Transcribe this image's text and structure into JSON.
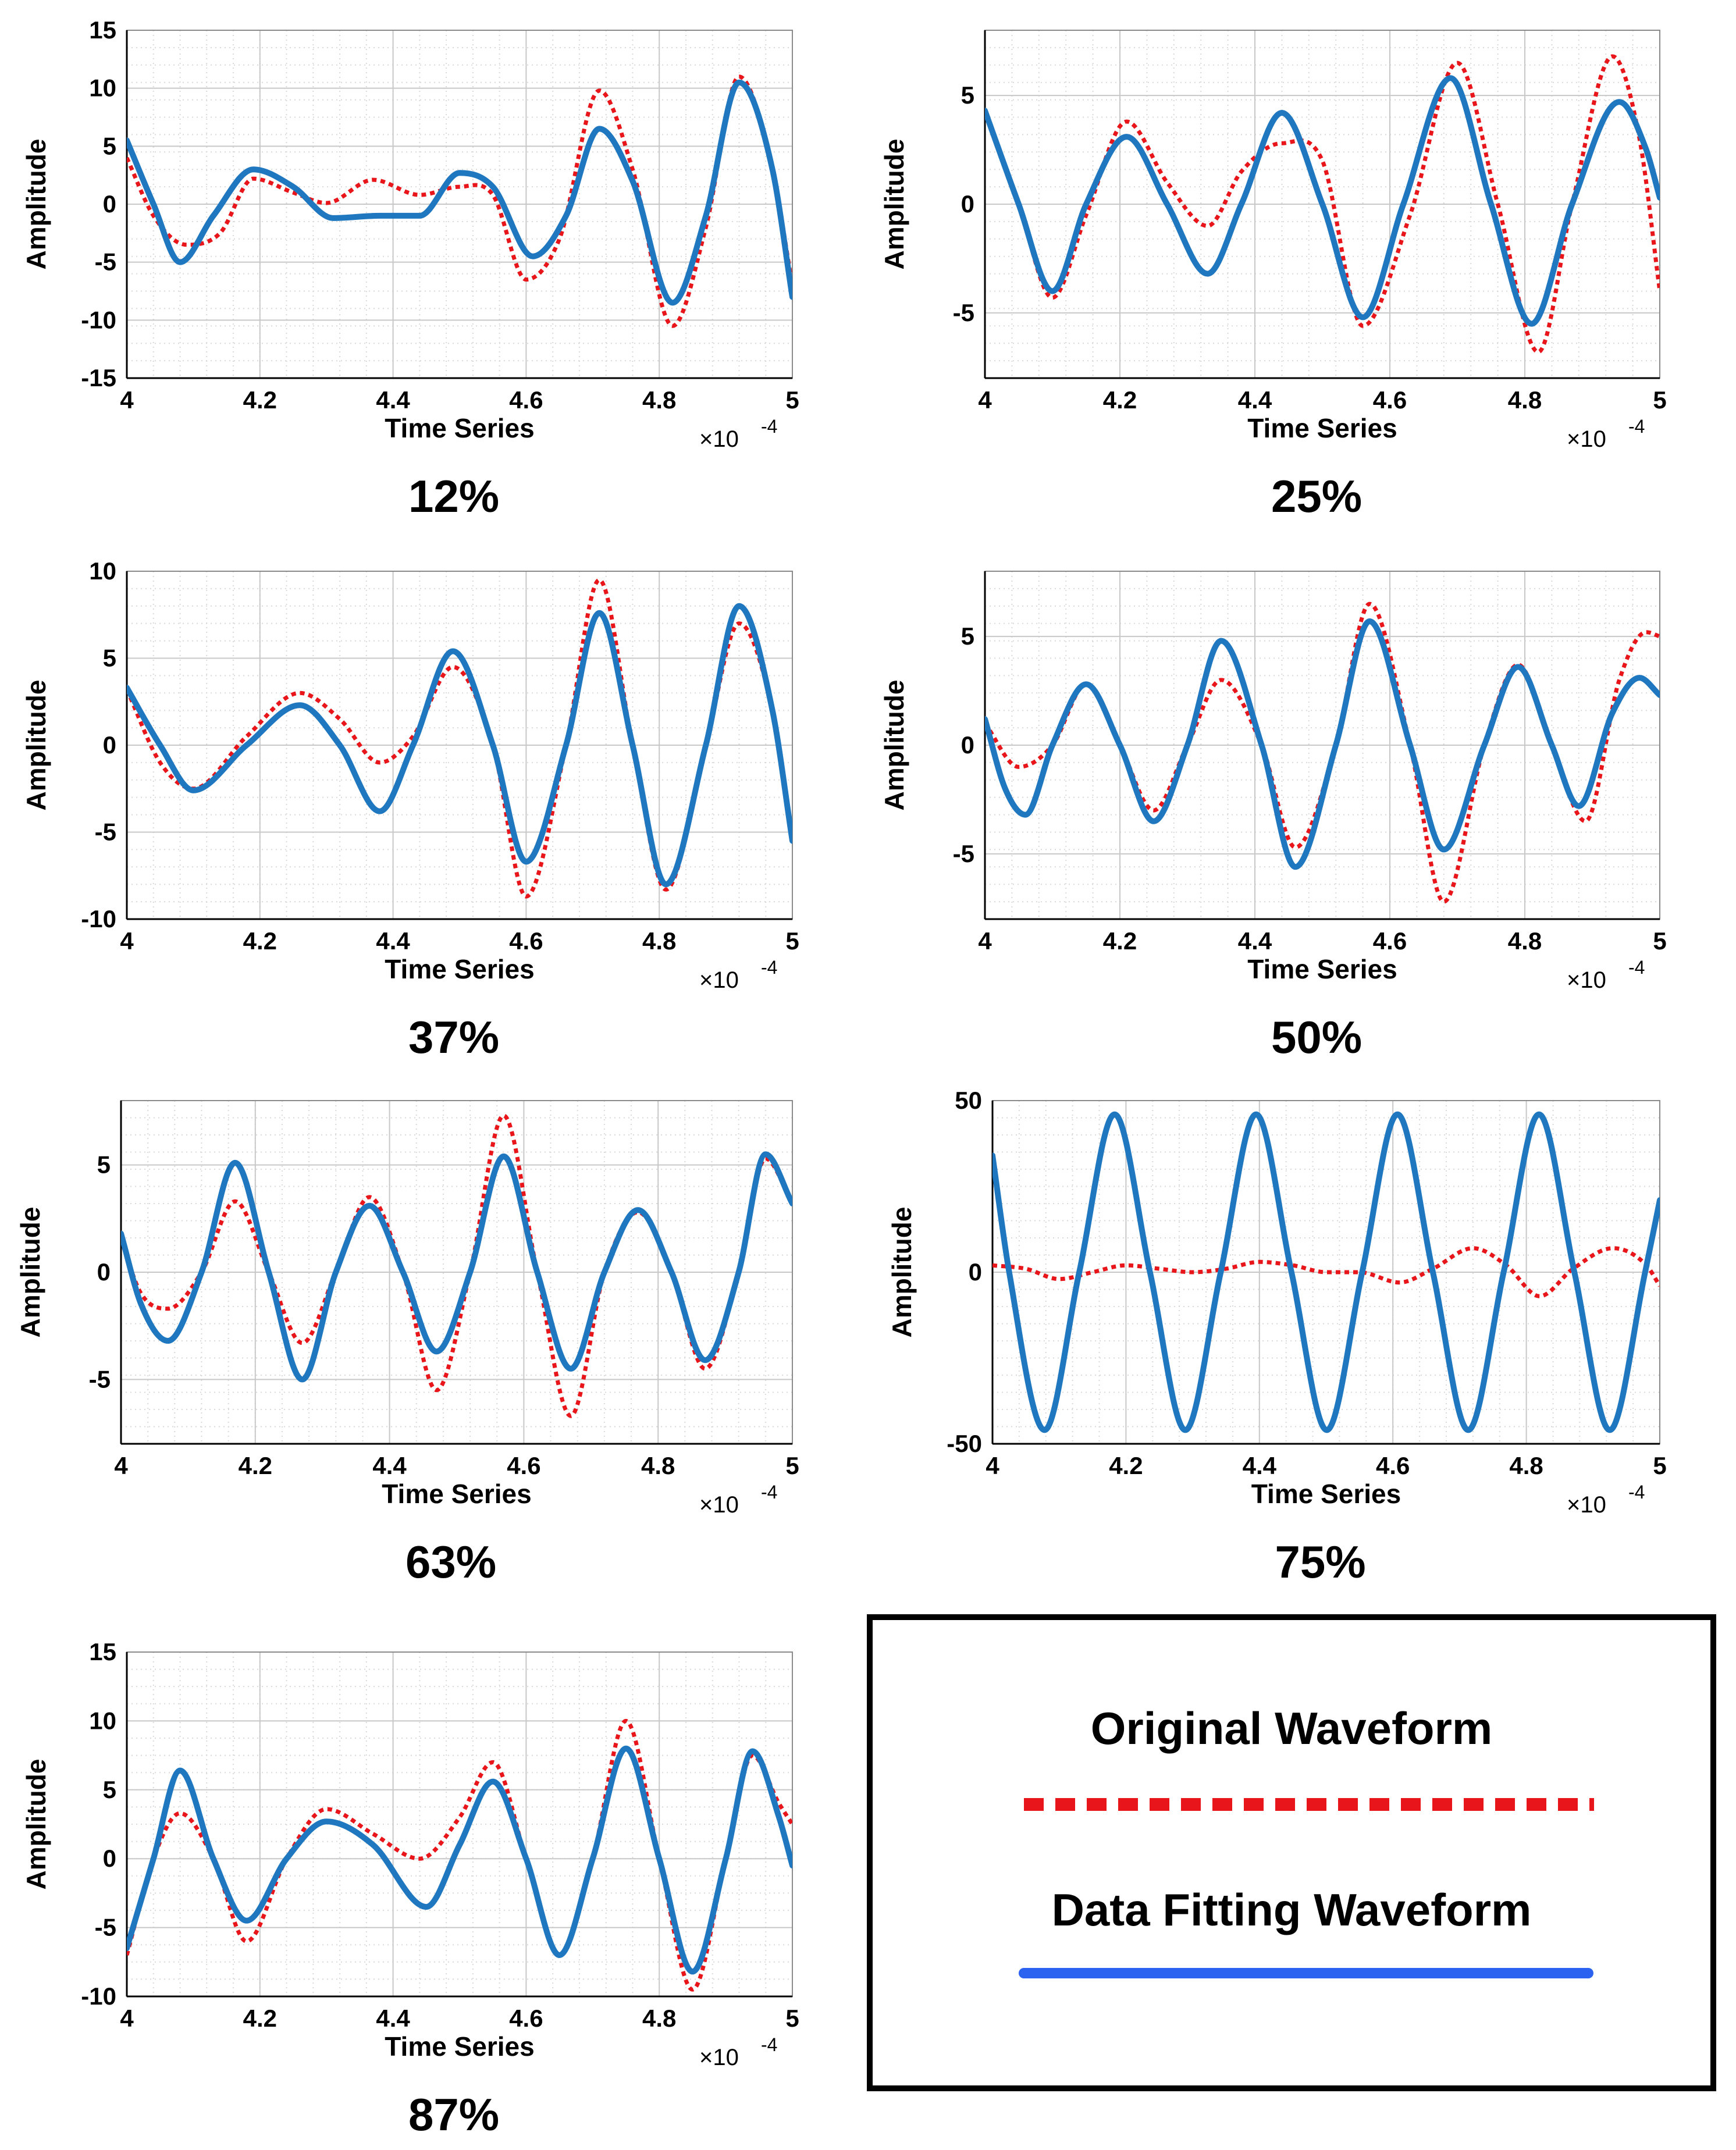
{
  "colors": {
    "original": "#e8161b",
    "fit": "#1f77c0",
    "legend_fit": "#2b63f0",
    "grid": "#d9d9d9",
    "axis": "#000000"
  },
  "chart_data": [
    {
      "type": "line",
      "caption": "12%",
      "xlabel": "Time Series",
      "ylabel": "Amplitude",
      "x_multiplier": "×10",
      "x_exponent": "-4",
      "xlim": [
        4,
        5
      ],
      "ylim": [
        -15,
        15
      ],
      "xticks": [
        "4",
        "4.2",
        "4.4",
        "4.6",
        "4.8",
        "5"
      ],
      "yticks": [
        "15",
        "10",
        "5",
        "0",
        "-5",
        "-10",
        "-15"
      ],
      "series": [
        {
          "name": "Original Waveform",
          "x": [
            4.0,
            4.04,
            4.09,
            4.14,
            4.19,
            4.25,
            4.3,
            4.37,
            4.44,
            4.5,
            4.55,
            4.6,
            4.65,
            4.71,
            4.76,
            4.82,
            4.87,
            4.92,
            4.97,
            5.0
          ],
          "y": [
            4,
            -1,
            -3.5,
            -2.5,
            2.2,
            1,
            0.1,
            2.1,
            0.8,
            1.5,
            0.8,
            -6.5,
            -3,
            9.8,
            3,
            -10.5,
            -2,
            11,
            3,
            -7
          ]
        },
        {
          "name": "Data Fitting Waveform",
          "x": [
            4.0,
            4.04,
            4.08,
            4.13,
            4.19,
            4.25,
            4.31,
            4.38,
            4.44,
            4.5,
            4.55,
            4.61,
            4.66,
            4.71,
            4.76,
            4.82,
            4.87,
            4.92,
            4.97,
            5.0
          ],
          "y": [
            5.5,
            0,
            -5,
            -1,
            3,
            1.5,
            -1.2,
            -1,
            -1,
            2.7,
            1.5,
            -4.5,
            -1,
            6.5,
            2,
            -8.5,
            -1,
            10.5,
            3,
            -8
          ]
        }
      ]
    },
    {
      "type": "line",
      "caption": "25%",
      "xlabel": "Time Series",
      "ylabel": "Amplitude",
      "x_multiplier": "×10",
      "x_exponent": "-4",
      "xlim": [
        4,
        5
      ],
      "ylim": [
        -8,
        8
      ],
      "xticks": [
        "4",
        "4.2",
        "4.4",
        "4.6",
        "4.8",
        "5"
      ],
      "yticks": [
        "5",
        "0",
        "-5"
      ],
      "series": [
        {
          "name": "Original Waveform",
          "x": [
            4.0,
            4.05,
            4.1,
            4.15,
            4.21,
            4.27,
            4.33,
            4.38,
            4.44,
            4.5,
            4.56,
            4.63,
            4.7,
            4.76,
            4.82,
            4.87,
            4.93,
            4.97,
            5.0
          ],
          "y": [
            4.3,
            0,
            -4.3,
            -0.5,
            3.8,
            1,
            -1,
            1.5,
            2.8,
            2,
            -5.6,
            -0.5,
            6.5,
            0,
            -6.8,
            0,
            6.8,
            3,
            -4
          ]
        },
        {
          "name": "Data Fitting Waveform",
          "x": [
            4.0,
            4.05,
            4.1,
            4.15,
            4.21,
            4.27,
            4.33,
            4.38,
            4.44,
            4.5,
            4.56,
            4.62,
            4.69,
            4.75,
            4.81,
            4.87,
            4.94,
            4.98,
            5.0
          ],
          "y": [
            4.3,
            0,
            -4,
            0,
            3.1,
            0,
            -3.2,
            0,
            4.2,
            0,
            -5.2,
            0,
            5.8,
            0,
            -5.5,
            0,
            4.7,
            2.5,
            0.3
          ]
        }
      ]
    },
    {
      "type": "line",
      "caption": "37%",
      "xlabel": "Time Series",
      "ylabel": "Amplitude",
      "x_multiplier": "×10",
      "x_exponent": "-4",
      "xlim": [
        4,
        5
      ],
      "ylim": [
        -10,
        10
      ],
      "xticks": [
        "4",
        "4.2",
        "4.4",
        "4.6",
        "4.8",
        "5"
      ],
      "yticks": [
        "10",
        "5",
        "0",
        "-5",
        "-10"
      ],
      "series": [
        {
          "name": "Original Waveform",
          "x": [
            4.0,
            4.05,
            4.1,
            4.18,
            4.26,
            4.32,
            4.38,
            4.43,
            4.49,
            4.55,
            4.6,
            4.66,
            4.71,
            4.76,
            4.81,
            4.87,
            4.92,
            4.97,
            5.0
          ],
          "y": [
            3.2,
            -1,
            -2.5,
            0.5,
            3,
            1.5,
            -1,
            0.5,
            4.5,
            0,
            -8.7,
            0,
            9.5,
            0,
            -8.3,
            0,
            7,
            2,
            -5.3
          ]
        },
        {
          "name": "Data Fitting Waveform",
          "x": [
            4.0,
            4.05,
            4.1,
            4.18,
            4.26,
            4.32,
            4.38,
            4.43,
            4.49,
            4.55,
            4.6,
            4.66,
            4.71,
            4.76,
            4.81,
            4.87,
            4.92,
            4.97,
            5.0
          ],
          "y": [
            3.3,
            0,
            -2.6,
            0,
            2.3,
            0,
            -3.8,
            0,
            5.4,
            0,
            -6.7,
            0,
            7.6,
            0,
            -8,
            0,
            8,
            2,
            -5.5
          ]
        }
      ]
    },
    {
      "type": "line",
      "caption": "50%",
      "xlabel": "Time Series",
      "ylabel": "Amplitude",
      "x_multiplier": "×10",
      "x_exponent": "-4",
      "xlim": [
        4,
        5
      ],
      "ylim": [
        -8,
        8
      ],
      "xticks": [
        "4",
        "4.2",
        "4.4",
        "4.6",
        "4.8",
        "5"
      ],
      "yticks": [
        "5",
        "0",
        "-5"
      ],
      "series": [
        {
          "name": "Original Waveform",
          "x": [
            4.0,
            4.05,
            4.1,
            4.15,
            4.2,
            4.25,
            4.3,
            4.35,
            4.41,
            4.46,
            4.52,
            4.57,
            4.63,
            4.68,
            4.74,
            4.79,
            4.84,
            4.89,
            4.94,
            4.98,
            5.0
          ],
          "y": [
            1,
            -1,
            0,
            2.8,
            0,
            -3,
            0,
            3,
            0,
            -4.7,
            0,
            6.5,
            0,
            -7.2,
            0,
            3.7,
            0,
            -3.5,
            3,
            5.2,
            5
          ]
        },
        {
          "name": "Data Fitting Waveform",
          "x": [
            4.0,
            4.03,
            4.06,
            4.1,
            4.15,
            4.2,
            4.25,
            4.3,
            4.35,
            4.41,
            4.46,
            4.52,
            4.57,
            4.63,
            4.68,
            4.74,
            4.79,
            4.84,
            4.88,
            4.93,
            4.97,
            5.0
          ],
          "y": [
            1.2,
            -2,
            -3.2,
            0,
            2.8,
            0,
            -3.5,
            0,
            4.8,
            0,
            -5.6,
            0,
            5.7,
            0,
            -4.8,
            0,
            3.6,
            0,
            -2.8,
            1.5,
            3.1,
            2.3
          ]
        }
      ]
    },
    {
      "type": "line",
      "caption": "63%",
      "xlabel": "Time Series",
      "ylabel": "Amplitude",
      "x_multiplier": "×10",
      "x_exponent": "-4",
      "xlim": [
        4,
        5
      ],
      "ylim": [
        -8,
        8
      ],
      "xticks": [
        "4",
        "4.2",
        "4.4",
        "4.6",
        "4.8",
        "5"
      ],
      "yticks": [
        "5",
        "0",
        "-5"
      ],
      "series": [
        {
          "name": "Original Waveform",
          "x": [
            4.0,
            4.03,
            4.07,
            4.12,
            4.17,
            4.22,
            4.27,
            4.32,
            4.37,
            4.42,
            4.47,
            4.52,
            4.57,
            4.62,
            4.67,
            4.72,
            4.77,
            4.82,
            4.87,
            4.92,
            4.96,
            5.0
          ],
          "y": [
            1.5,
            -1,
            -1.7,
            0,
            3.3,
            0,
            -3.3,
            0,
            3.5,
            0,
            -5.5,
            0,
            7.3,
            0,
            -6.7,
            0,
            2.8,
            0,
            -4.5,
            0,
            5.3,
            3.2
          ]
        },
        {
          "name": "Data Fitting Waveform",
          "x": [
            4.0,
            4.03,
            4.07,
            4.12,
            4.17,
            4.22,
            4.27,
            4.32,
            4.37,
            4.42,
            4.47,
            4.52,
            4.57,
            4.62,
            4.67,
            4.72,
            4.77,
            4.82,
            4.87,
            4.92,
            4.96,
            5.0
          ],
          "y": [
            1.8,
            -1.5,
            -3.2,
            0,
            5.1,
            0,
            -5,
            0,
            3.1,
            0,
            -3.7,
            0,
            5.4,
            0,
            -4.5,
            0,
            2.9,
            0,
            -4.1,
            0,
            5.5,
            3.2
          ]
        }
      ]
    },
    {
      "type": "line",
      "caption": "75%",
      "xlabel": "Time Series",
      "ylabel": "Amplitude",
      "x_multiplier": "×10",
      "x_exponent": "-4",
      "xlim": [
        4,
        5
      ],
      "ylim": [
        -50,
        50
      ],
      "xticks": [
        "4",
        "4.2",
        "4.4",
        "4.6",
        "4.8",
        "5"
      ],
      "yticks": [
        "50",
        "0",
        "-50"
      ],
      "series": [
        {
          "name": "Original Waveform",
          "x": [
            4.0,
            4.05,
            4.1,
            4.15,
            4.2,
            4.25,
            4.3,
            4.35,
            4.4,
            4.45,
            4.5,
            4.55,
            4.61,
            4.66,
            4.72,
            4.77,
            4.82,
            4.87,
            4.93,
            4.98,
            5.0
          ],
          "y": [
            2,
            1,
            -2,
            0,
            2,
            1,
            0,
            1,
            3,
            2,
            0,
            0,
            -3,
            1,
            7,
            2,
            -7,
            1,
            7,
            2,
            -4
          ]
        },
        {
          "name": "Data Fitting Waveform",
          "x": [
            4.0,
            4.025,
            4.078,
            4.13,
            4.183,
            4.236,
            4.289,
            4.342,
            4.395,
            4.448,
            4.501,
            4.554,
            4.607,
            4.66,
            4.713,
            4.766,
            4.819,
            4.872,
            4.925,
            4.978,
            5.0
          ],
          "y": [
            34,
            0,
            -46,
            0,
            46,
            0,
            -46,
            0,
            46,
            0,
            -46,
            0,
            46,
            0,
            -46,
            0,
            46,
            0,
            -46,
            0,
            21
          ]
        }
      ]
    },
    {
      "type": "line",
      "caption": "87%",
      "xlabel": "Time Series",
      "ylabel": "Amplitude",
      "x_multiplier": "×10",
      "x_exponent": "-4",
      "xlim": [
        4,
        5
      ],
      "ylim": [
        -10,
        15
      ],
      "xticks": [
        "4",
        "4.2",
        "4.4",
        "4.6",
        "4.8",
        "5"
      ],
      "yticks": [
        "15",
        "10",
        "5",
        "0",
        "-5",
        "-10"
      ],
      "series": [
        {
          "name": "Original Waveform",
          "x": [
            4.0,
            4.04,
            4.08,
            4.13,
            4.18,
            4.24,
            4.3,
            4.37,
            4.44,
            4.5,
            4.55,
            4.6,
            4.65,
            4.7,
            4.75,
            4.8,
            4.85,
            4.9,
            4.94,
            4.98,
            5.0
          ],
          "y": [
            -7,
            0,
            3.3,
            0,
            -6,
            0,
            3.6,
            1.8,
            0,
            3,
            7,
            0,
            -7,
            0,
            10,
            0,
            -9.5,
            0,
            7.5,
            4,
            2.5
          ]
        },
        {
          "name": "Data Fitting Waveform",
          "x": [
            4.0,
            4.04,
            4.08,
            4.13,
            4.18,
            4.24,
            4.3,
            4.37,
            4.45,
            4.5,
            4.55,
            4.6,
            4.65,
            4.7,
            4.75,
            4.8,
            4.85,
            4.9,
            4.94,
            4.98,
            5.0
          ],
          "y": [
            -6.5,
            0,
            6.4,
            0,
            -4.5,
            0,
            2.7,
            1,
            -3.5,
            1,
            5.6,
            0,
            -7,
            0,
            8,
            0,
            -8.2,
            0,
            7.8,
            3,
            -0.5
          ]
        }
      ]
    }
  ],
  "legend": {
    "original_label": "Original Waveform",
    "fit_label": "Data Fitting Waveform"
  }
}
